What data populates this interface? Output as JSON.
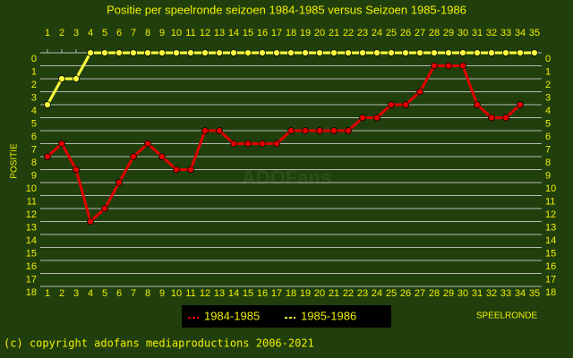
{
  "chart_data": {
    "type": "line",
    "title": "Positie per speelronde seizoen 1984-1985 versus Seizoen 1985-1986",
    "y_label": "POSITIE",
    "x_label": "SPEELRONDE",
    "watermark": "ADOFans",
    "footer": "(c) copyright adofans mediaproductions 2006-2021",
    "x": [
      1,
      2,
      3,
      4,
      5,
      6,
      7,
      8,
      9,
      10,
      11,
      12,
      13,
      14,
      15,
      16,
      17,
      18,
      19,
      20,
      21,
      22,
      23,
      24,
      25,
      26,
      27,
      28,
      29,
      30,
      31,
      32,
      33,
      34,
      35
    ],
    "xlim": [
      0.5,
      35.5
    ],
    "xticks": [
      1,
      2,
      3,
      4,
      5,
      6,
      7,
      8,
      9,
      10,
      11,
      12,
      13,
      14,
      15,
      16,
      17,
      18,
      19,
      20,
      21,
      22,
      23,
      24,
      25,
      26,
      27,
      28,
      29,
      30,
      31,
      32,
      33,
      34,
      35
    ],
    "ylim": [
      18,
      0
    ],
    "yticks": [
      0,
      1,
      2,
      3,
      4,
      5,
      6,
      7,
      8,
      9,
      10,
      11,
      12,
      13,
      14,
      15,
      16,
      17,
      18
    ],
    "grid": true,
    "series": [
      {
        "name": "1984-1985",
        "color": "#e00000",
        "values": [
          8,
          7,
          9,
          13,
          12,
          10,
          8,
          7,
          8,
          9,
          9,
          6,
          6,
          7,
          7,
          7,
          7,
          6,
          6,
          6,
          6,
          6,
          5,
          5,
          4,
          4,
          3,
          1,
          1,
          1,
          4,
          5,
          5,
          4,
          null
        ]
      },
      {
        "name": "1985-1986",
        "color": "#ffff40",
        "values": [
          4,
          2,
          2,
          0,
          0,
          0,
          0,
          0,
          0,
          0,
          0,
          0,
          0,
          0,
          0,
          0,
          0,
          0,
          0,
          0,
          0,
          0,
          0,
          0,
          0,
          0,
          0,
          0,
          0,
          0,
          0,
          0,
          0,
          0,
          0
        ]
      }
    ]
  }
}
